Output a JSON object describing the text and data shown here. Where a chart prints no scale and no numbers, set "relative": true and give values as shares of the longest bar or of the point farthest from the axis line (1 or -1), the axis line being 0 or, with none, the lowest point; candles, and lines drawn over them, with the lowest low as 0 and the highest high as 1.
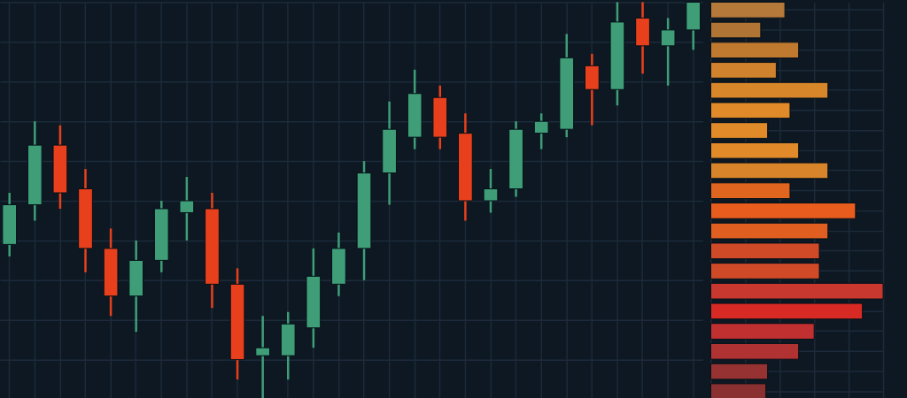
{
  "chart_data": [
    {
      "type": "candlestick",
      "relative": true,
      "grid": true,
      "tick_labels": false,
      "categories": [
        null,
        null,
        null,
        null,
        null,
        null,
        null,
        null,
        null,
        null,
        null,
        null,
        null,
        null,
        null,
        null,
        null,
        null,
        null,
        null,
        null,
        null,
        null,
        null,
        null,
        null,
        null,
        null
      ],
      "ohlc": [
        [
          0.39,
          0.52,
          0.36,
          0.49
        ],
        [
          0.49,
          0.7,
          0.45,
          0.64
        ],
        [
          0.64,
          0.69,
          0.48,
          0.52
        ],
        [
          0.53,
          0.58,
          0.32,
          0.38
        ],
        [
          0.38,
          0.43,
          0.21,
          0.26
        ],
        [
          0.26,
          0.4,
          0.17,
          0.35
        ],
        [
          0.35,
          0.5,
          0.32,
          0.48
        ],
        [
          0.47,
          0.56,
          0.4,
          0.5
        ],
        [
          0.48,
          0.52,
          0.23,
          0.29
        ],
        [
          0.29,
          0.33,
          0.05,
          0.1
        ],
        [
          0.11,
          0.21,
          0,
          0.13
        ],
        [
          0.11,
          0.22,
          0.05,
          0.19
        ],
        [
          0.18,
          0.38,
          0.13,
          0.31
        ],
        [
          0.29,
          0.42,
          0.26,
          0.38
        ],
        [
          0.38,
          0.6,
          0.3,
          0.57
        ],
        [
          0.57,
          0.75,
          0.49,
          0.68
        ],
        [
          0.66,
          0.83,
          0.63,
          0.77
        ],
        [
          0.76,
          0.79,
          0.63,
          0.66
        ],
        [
          0.67,
          0.72,
          0.45,
          0.5
        ],
        [
          0.5,
          0.58,
          0.47,
          0.53
        ],
        [
          0.53,
          0.7,
          0.51,
          0.68
        ],
        [
          0.67,
          0.72,
          0.63,
          0.7
        ],
        [
          0.68,
          0.92,
          0.66,
          0.86
        ],
        [
          0.84,
          0.87,
          0.69,
          0.78
        ],
        [
          0.78,
          1,
          0.74,
          0.95
        ],
        [
          0.96,
          1,
          0.82,
          0.89
        ],
        [
          0.89,
          0.96,
          0.79,
          0.93
        ],
        [
          0.93,
          1,
          0.88,
          1
        ]
      ],
      "colors": [
        "#3f9e78",
        "#3f9e78",
        "#e8401c",
        "#e8401c",
        "#e8401c",
        "#3f9e78",
        "#3f9e78",
        "#3f9e78",
        "#e8401c",
        "#e8401c",
        "#3f9e78",
        "#3f9e78",
        "#3f9e78",
        "#3f9e78",
        "#3f9e78",
        "#3f9e78",
        "#3f9e78",
        "#e8401c",
        "#e8401c",
        "#3f9e78",
        "#3f9e78",
        "#3f9e78",
        "#3f9e78",
        "#e8401c",
        "#3f9e78",
        "#e8401c",
        "#3f9e78",
        "#3f9e78"
      ]
    },
    {
      "type": "bar",
      "orientation": "horizontal",
      "relative": true,
      "grid": true,
      "tick_labels": false,
      "categories": [
        null,
        null,
        null,
        null,
        null,
        null,
        null,
        null,
        null,
        null,
        null,
        null,
        null,
        null,
        null,
        null,
        null,
        null,
        null,
        null
      ],
      "values": [
        0.43,
        0.29,
        0.51,
        0.38,
        0.68,
        0.46,
        0.33,
        0.51,
        0.68,
        0.46,
        0.84,
        0.68,
        0.63,
        0.63,
        1,
        0.88,
        0.6,
        0.51,
        0.33,
        0.32
      ],
      "colors": [
        "#b5793a",
        "#b07535",
        "#c07a30",
        "#d0822c",
        "#d8862a",
        "#e08a2a",
        "#e08a2a",
        "#e08a2a",
        "#d8842a",
        "#e0651f",
        "#e85d1e",
        "#e05f20",
        "#d04a28",
        "#d04a28",
        "#c8382e",
        "#d82a24",
        "#c03030",
        "#b03232",
        "#963232",
        "#8a3030"
      ]
    }
  ]
}
